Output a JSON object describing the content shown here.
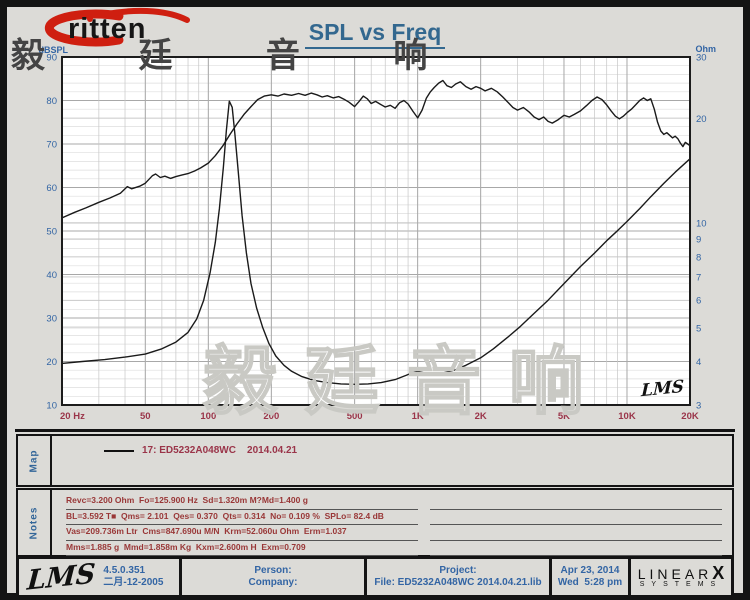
{
  "header": {
    "logo_text": "ritten",
    "logo_cn": "毅 廷 音 响",
    "title": "SPL vs Freq"
  },
  "watermark_text": "毅廷音响",
  "chart_data": {
    "type": "line",
    "title": "SPL vs Freq",
    "inplot_logo": "LMS",
    "grid": true,
    "x_axis": {
      "scale": "log",
      "min": 20,
      "max": 20000,
      "unit": "Hz",
      "ticks": [
        {
          "v": 20,
          "label": "20 Hz"
        },
        {
          "v": 50,
          "label": "50"
        },
        {
          "v": 100,
          "label": "100"
        },
        {
          "v": 200,
          "label": "200"
        },
        {
          "v": 500,
          "label": "500"
        },
        {
          "v": 1000,
          "label": "1K"
        },
        {
          "v": 2000,
          "label": "2K"
        },
        {
          "v": 5000,
          "label": "5K"
        },
        {
          "v": 10000,
          "label": "10K"
        },
        {
          "v": 20000,
          "label": "20K"
        }
      ]
    },
    "y_left": {
      "label": "dBSPL",
      "scale": "linear",
      "min": 10,
      "max": 90,
      "major_step": 10,
      "minor_step": 2
    },
    "y_right": {
      "label": "Ohm",
      "scale": "log",
      "min": 3,
      "max": 30,
      "ticks": [
        30,
        20,
        10,
        9,
        8,
        7,
        6,
        5,
        4,
        3
      ]
    },
    "series": [
      {
        "name": "17: ED5232A048WC 2014.04.21 (SPL)",
        "axis": "left",
        "points": [
          [
            20,
            53
          ],
          [
            23,
            54.3
          ],
          [
            26,
            55.3
          ],
          [
            30,
            56.6
          ],
          [
            34,
            57.6
          ],
          [
            38,
            58.7
          ],
          [
            41,
            60.2
          ],
          [
            43,
            59.7
          ],
          [
            47,
            60.3
          ],
          [
            50,
            61
          ],
          [
            54,
            62.7
          ],
          [
            56,
            63.1
          ],
          [
            59,
            62.3
          ],
          [
            62,
            62.6
          ],
          [
            66,
            62.1
          ],
          [
            70,
            62.5
          ],
          [
            75,
            62.9
          ],
          [
            80,
            63.2
          ],
          [
            86,
            63.8
          ],
          [
            92,
            64.5
          ],
          [
            100,
            65.6
          ],
          [
            108,
            67.3
          ],
          [
            117,
            69.5
          ],
          [
            127,
            72.2
          ],
          [
            137,
            74.6
          ],
          [
            148,
            76.8
          ],
          [
            160,
            78.6
          ],
          [
            172,
            80.2
          ],
          [
            185,
            81
          ],
          [
            200,
            81.3
          ],
          [
            215,
            81
          ],
          [
            230,
            81.5
          ],
          [
            250,
            81.2
          ],
          [
            270,
            81.6
          ],
          [
            290,
            81.2
          ],
          [
            310,
            81.7
          ],
          [
            330,
            81.3
          ],
          [
            350,
            80.8
          ],
          [
            370,
            81.1
          ],
          [
            395,
            80.6
          ],
          [
            420,
            80.9
          ],
          [
            445,
            80.3
          ],
          [
            470,
            79.6
          ],
          [
            500,
            78.6
          ],
          [
            525,
            79.8
          ],
          [
            550,
            81
          ],
          [
            575,
            80.4
          ],
          [
            600,
            79.3
          ],
          [
            630,
            79.8
          ],
          [
            660,
            79.2
          ],
          [
            700,
            78.5
          ],
          [
            740,
            78.9
          ],
          [
            780,
            78.2
          ],
          [
            820,
            79.5
          ],
          [
            860,
            80
          ],
          [
            900,
            79.2
          ],
          [
            950,
            77.5
          ],
          [
            1000,
            76
          ],
          [
            1050,
            77.8
          ],
          [
            1100,
            80.5
          ],
          [
            1150,
            82
          ],
          [
            1200,
            83
          ],
          [
            1260,
            84
          ],
          [
            1320,
            84.6
          ],
          [
            1380,
            83.4
          ],
          [
            1450,
            83
          ],
          [
            1520,
            83.8
          ],
          [
            1600,
            84.3
          ],
          [
            1700,
            83.2
          ],
          [
            1800,
            82.6
          ],
          [
            1900,
            83.2
          ],
          [
            2000,
            82.8
          ],
          [
            2100,
            82.2
          ],
          [
            2250,
            82.8
          ],
          [
            2400,
            82
          ],
          [
            2550,
            80.8
          ],
          [
            2700,
            79.6
          ],
          [
            2850,
            78.4
          ],
          [
            3000,
            77.8
          ],
          [
            3200,
            78.4
          ],
          [
            3400,
            77.4
          ],
          [
            3600,
            76.2
          ],
          [
            3800,
            75.6
          ],
          [
            4000,
            76.2
          ],
          [
            4200,
            75.2
          ],
          [
            4400,
            74.8
          ],
          [
            4700,
            75.6
          ],
          [
            5000,
            76.6
          ],
          [
            5300,
            76.2
          ],
          [
            5600,
            76.8
          ],
          [
            6000,
            77.6
          ],
          [
            6400,
            78.8
          ],
          [
            6800,
            80
          ],
          [
            7200,
            80.8
          ],
          [
            7600,
            80.2
          ],
          [
            8000,
            79
          ],
          [
            8400,
            77.6
          ],
          [
            8800,
            76.4
          ],
          [
            9200,
            75.8
          ],
          [
            9600,
            76.4
          ],
          [
            10000,
            77.2
          ],
          [
            10500,
            78
          ],
          [
            11000,
            79
          ],
          [
            11500,
            80
          ],
          [
            12000,
            80.6
          ],
          [
            12500,
            80
          ],
          [
            13000,
            80.4
          ],
          [
            13500,
            78
          ],
          [
            14000,
            75
          ],
          [
            14500,
            73
          ],
          [
            15000,
            72.2
          ],
          [
            15500,
            72.6
          ],
          [
            16000,
            72
          ],
          [
            16500,
            71.4
          ],
          [
            17000,
            71.8
          ],
          [
            17500,
            71.2
          ],
          [
            18000,
            70.2
          ],
          [
            18500,
            69.4
          ],
          [
            19000,
            70.4
          ],
          [
            19500,
            70
          ],
          [
            20000,
            69.6
          ]
        ]
      },
      {
        "name": "17: ED5232A048WC 2014.04.21 (Impedance)",
        "axis": "right",
        "points": [
          [
            20,
            3.95
          ],
          [
            25,
            4
          ],
          [
            32,
            4.05
          ],
          [
            40,
            4.12
          ],
          [
            50,
            4.2
          ],
          [
            60,
            4.35
          ],
          [
            70,
            4.55
          ],
          [
            80,
            4.85
          ],
          [
            88,
            5.3
          ],
          [
            95,
            6
          ],
          [
            102,
            7.2
          ],
          [
            108,
            8.8
          ],
          [
            113,
            11
          ],
          [
            118,
            14.5
          ],
          [
            122,
            18.5
          ],
          [
            126,
            22.4
          ],
          [
            130,
            21.5
          ],
          [
            134,
            18
          ],
          [
            139,
            14
          ],
          [
            145,
            10.5
          ],
          [
            152,
            8.2
          ],
          [
            160,
            6.7
          ],
          [
            170,
            5.7
          ],
          [
            182,
            5
          ],
          [
            195,
            4.5
          ],
          [
            210,
            4.15
          ],
          [
            230,
            3.9
          ],
          [
            250,
            3.75
          ],
          [
            280,
            3.62
          ],
          [
            320,
            3.53
          ],
          [
            370,
            3.48
          ],
          [
            430,
            3.45
          ],
          [
            500,
            3.44
          ],
          [
            580,
            3.45
          ],
          [
            670,
            3.48
          ],
          [
            780,
            3.55
          ],
          [
            880,
            3.65
          ],
          [
            950,
            3.72
          ],
          [
            1000,
            3.75
          ],
          [
            1060,
            3.72
          ],
          [
            1150,
            3.68
          ],
          [
            1300,
            3.7
          ],
          [
            1500,
            3.78
          ],
          [
            1700,
            3.9
          ],
          [
            2000,
            4.1
          ],
          [
            2300,
            4.35
          ],
          [
            2700,
            4.7
          ],
          [
            3100,
            5.05
          ],
          [
            3600,
            5.5
          ],
          [
            4200,
            6
          ],
          [
            5000,
            6.7
          ],
          [
            6000,
            7.5
          ],
          [
            7000,
            8.2
          ],
          [
            8000,
            8.9
          ],
          [
            9000,
            9.5
          ],
          [
            10000,
            10.1
          ],
          [
            11500,
            11
          ],
          [
            13000,
            11.9
          ],
          [
            15000,
            13
          ],
          [
            17000,
            14
          ],
          [
            20000,
            15.3
          ]
        ]
      }
    ]
  },
  "map_panel": {
    "label": "Map",
    "legend_text": "17: ED5232A048WC    2014.04.21"
  },
  "notes_panel": {
    "label": "Notes",
    "lines": [
      "Revc=3.200 Ohm  Fo=125.900 Hz  Sd=1.320m M?Md=1.400 g",
      "BL=3.592 T■  Qms= 2.101  Qes= 0.370  Qts= 0.314  No= 0.109 %  SPLo= 82.4 dB",
      "Vas=209.736m Ltr  Cms=847.690u M/N  Krm=52.060u Ohm  Erm=1.037",
      "Mms=1.885 g  Mmd=1.858m Kg  Kxm=2.600m H  Exm=0.709"
    ]
  },
  "footer": {
    "lms_script": "LMS",
    "version": "4.5.0.351",
    "version_date": "二月-12-2005",
    "person_label": "Person:",
    "company_label": "Company:",
    "project_label": "Project:",
    "file_label": "File: ED5232A048WC 2014.04.21.lib",
    "date": "Apr 23, 2014",
    "time": "Wed  5:28 pm",
    "brand_top": "LINEAR",
    "brand_x": "X",
    "brand_bottom": "SYSTEMS"
  },
  "colors": {
    "title_blue": "#33688F",
    "tick_blue": "#3365A4",
    "x_maroon": "#9A3449",
    "notes_red": "#993737",
    "grid_minor": "#dedede",
    "grid_major": "#a8a8a8",
    "grid_mid": "#c6c6c6",
    "curve": "#1a1a1a",
    "logo_red": "#cf1f10"
  }
}
